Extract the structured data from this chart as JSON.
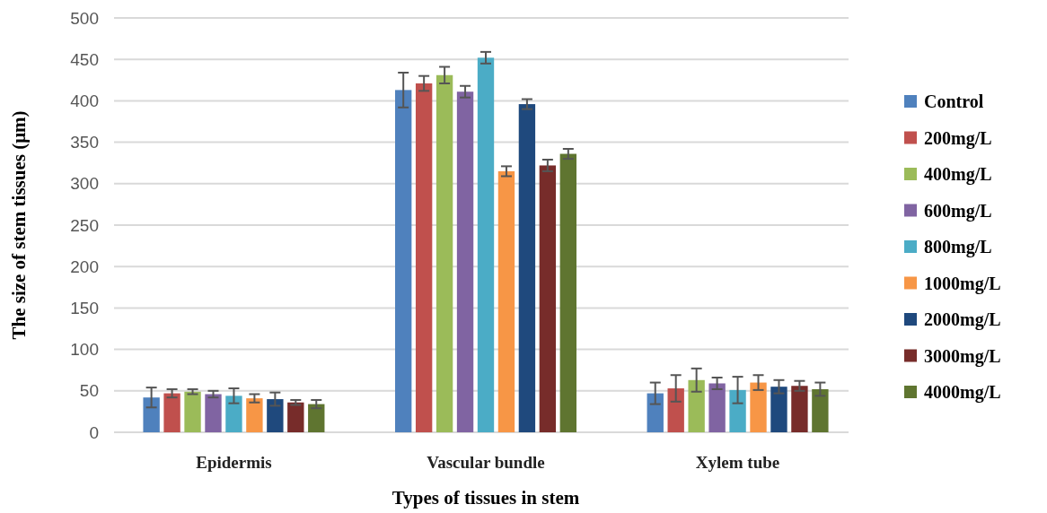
{
  "chart_data": {
    "type": "bar",
    "xlabel": "Types of tissues in stem",
    "ylabel": "The size of stem tissues (μm)",
    "categories": [
      "Epidermis",
      "Vascular bundle",
      "Xylem tube"
    ],
    "series": [
      {
        "name": "Control",
        "color": "#4f81bd",
        "values": [
          42,
          413,
          47
        ],
        "errors": [
          12,
          21,
          13
        ]
      },
      {
        "name": "200mg/L",
        "color": "#c0504d",
        "values": [
          47,
          421,
          53
        ],
        "errors": [
          5,
          9,
          16
        ]
      },
      {
        "name": "400mg/L",
        "color": "#9bbb59",
        "values": [
          49,
          431,
          63
        ],
        "errors": [
          3,
          10,
          14
        ]
      },
      {
        "name": "600mg/L",
        "color": "#8064a2",
        "values": [
          46,
          411,
          59
        ],
        "errors": [
          4,
          7,
          7
        ]
      },
      {
        "name": "800mg/L",
        "color": "#4bacc6",
        "values": [
          44,
          452,
          51
        ],
        "errors": [
          9,
          7,
          16
        ]
      },
      {
        "name": "1000mg/L",
        "color": "#f79646",
        "values": [
          41,
          315,
          60
        ],
        "errors": [
          5,
          6,
          9
        ]
      },
      {
        "name": "2000mg/L",
        "color": "#1f497d",
        "values": [
          40,
          396,
          55
        ],
        "errors": [
          8,
          6,
          8
        ]
      },
      {
        "name": "3000mg/L",
        "color": "#772c2a",
        "values": [
          36,
          322,
          56
        ],
        "errors": [
          3,
          7,
          6
        ]
      },
      {
        "name": "4000mg/L",
        "color": "#5f7530",
        "values": [
          34,
          336,
          52
        ],
        "errors": [
          5,
          6,
          8
        ]
      }
    ],
    "ylim": [
      0,
      500
    ],
    "yticks": [
      0,
      50,
      100,
      150,
      200,
      250,
      300,
      350,
      400,
      450,
      500
    ],
    "grid": "y",
    "legend": "right"
  }
}
